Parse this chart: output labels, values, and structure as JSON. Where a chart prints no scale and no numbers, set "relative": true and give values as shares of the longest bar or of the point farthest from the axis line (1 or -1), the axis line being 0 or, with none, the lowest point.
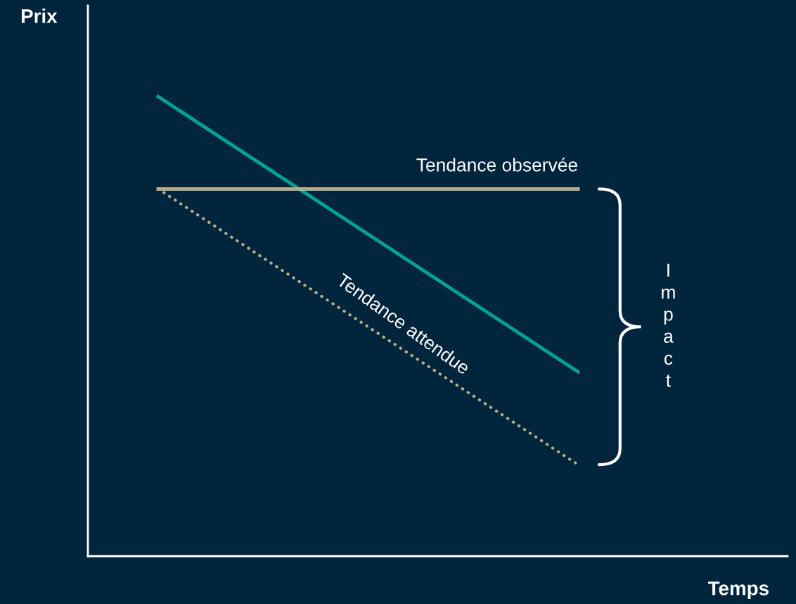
{
  "chart_data": {
    "type": "line",
    "relative": true,
    "xlabel": "Temps",
    "ylabel": "Prix",
    "categories": [
      null,
      null
    ],
    "series": [
      {
        "color": "#00a19a",
        "values": [
          1,
          0.401
        ],
        "line_style": "solid"
      },
      {
        "name": "Tendance observée",
        "color": "#b8ab8c",
        "values": [
          0.799,
          0.799
        ],
        "line_style": "solid"
      },
      {
        "name": "Tendance attendue",
        "color": "#b8ab8c",
        "values": [
          0.799,
          0.199
        ],
        "line_style": "dotted"
      }
    ],
    "annotations": [
      "Impact"
    ],
    "grid": false,
    "legend": false,
    "marker": "none"
  }
}
